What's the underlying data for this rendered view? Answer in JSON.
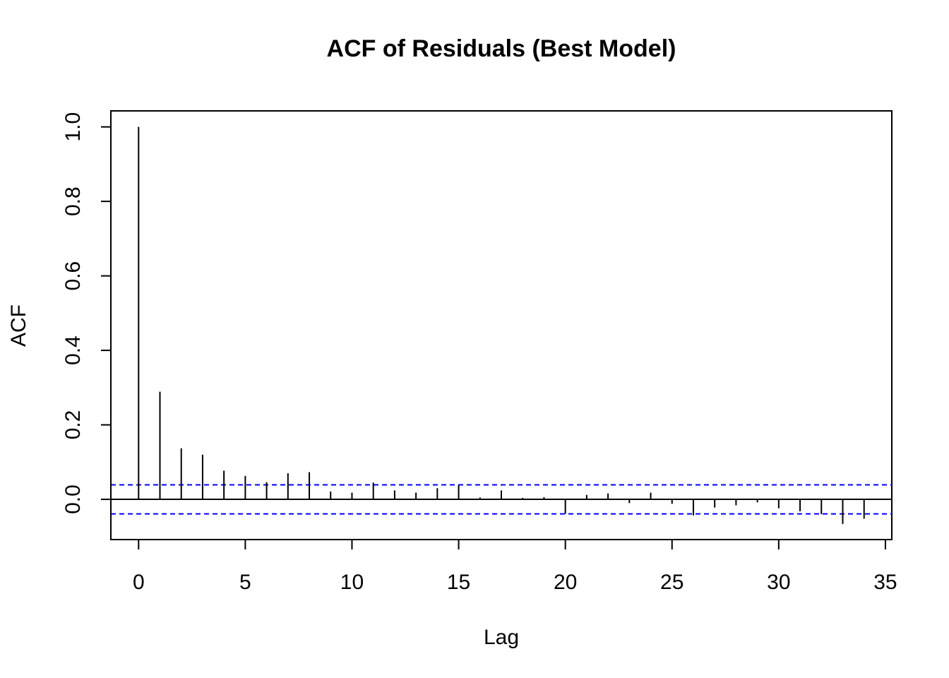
{
  "chart_data": {
    "type": "bar",
    "title": "ACF of Residuals (Best Model)",
    "xlabel": "Lag",
    "ylabel": "ACF",
    "xlim": [
      -1.3,
      35.3
    ],
    "ylim": [
      -0.108,
      1.043
    ],
    "x_ticks": [
      0,
      5,
      10,
      15,
      20,
      25,
      30,
      35
    ],
    "y_ticks": [
      0.0,
      0.2,
      0.4,
      0.6,
      0.8,
      1.0
    ],
    "y_tick_labels": [
      "0.0",
      "0.2",
      "0.4",
      "0.6",
      "0.8",
      "1.0"
    ],
    "confidence_limit": 0.039,
    "confidence_color": "#0000ff",
    "lags": [
      0,
      1,
      2,
      3,
      4,
      5,
      6,
      7,
      8,
      9,
      10,
      11,
      12,
      13,
      14,
      15,
      16,
      17,
      18,
      19,
      20,
      21,
      22,
      23,
      24,
      25,
      26,
      27,
      28,
      29,
      30,
      31,
      32,
      33,
      34
    ],
    "acf": [
      1.0,
      0.289,
      0.137,
      0.12,
      0.077,
      0.063,
      0.046,
      0.07,
      0.073,
      0.021,
      0.018,
      0.045,
      0.024,
      0.018,
      0.03,
      0.038,
      0.005,
      0.024,
      0.004,
      0.006,
      -0.039,
      0.012,
      0.016,
      -0.01,
      0.018,
      -0.012,
      -0.043,
      -0.022,
      -0.016,
      -0.008,
      -0.024,
      -0.032,
      -0.04,
      -0.066,
      -0.052
    ],
    "grid": false,
    "legend": "none"
  }
}
